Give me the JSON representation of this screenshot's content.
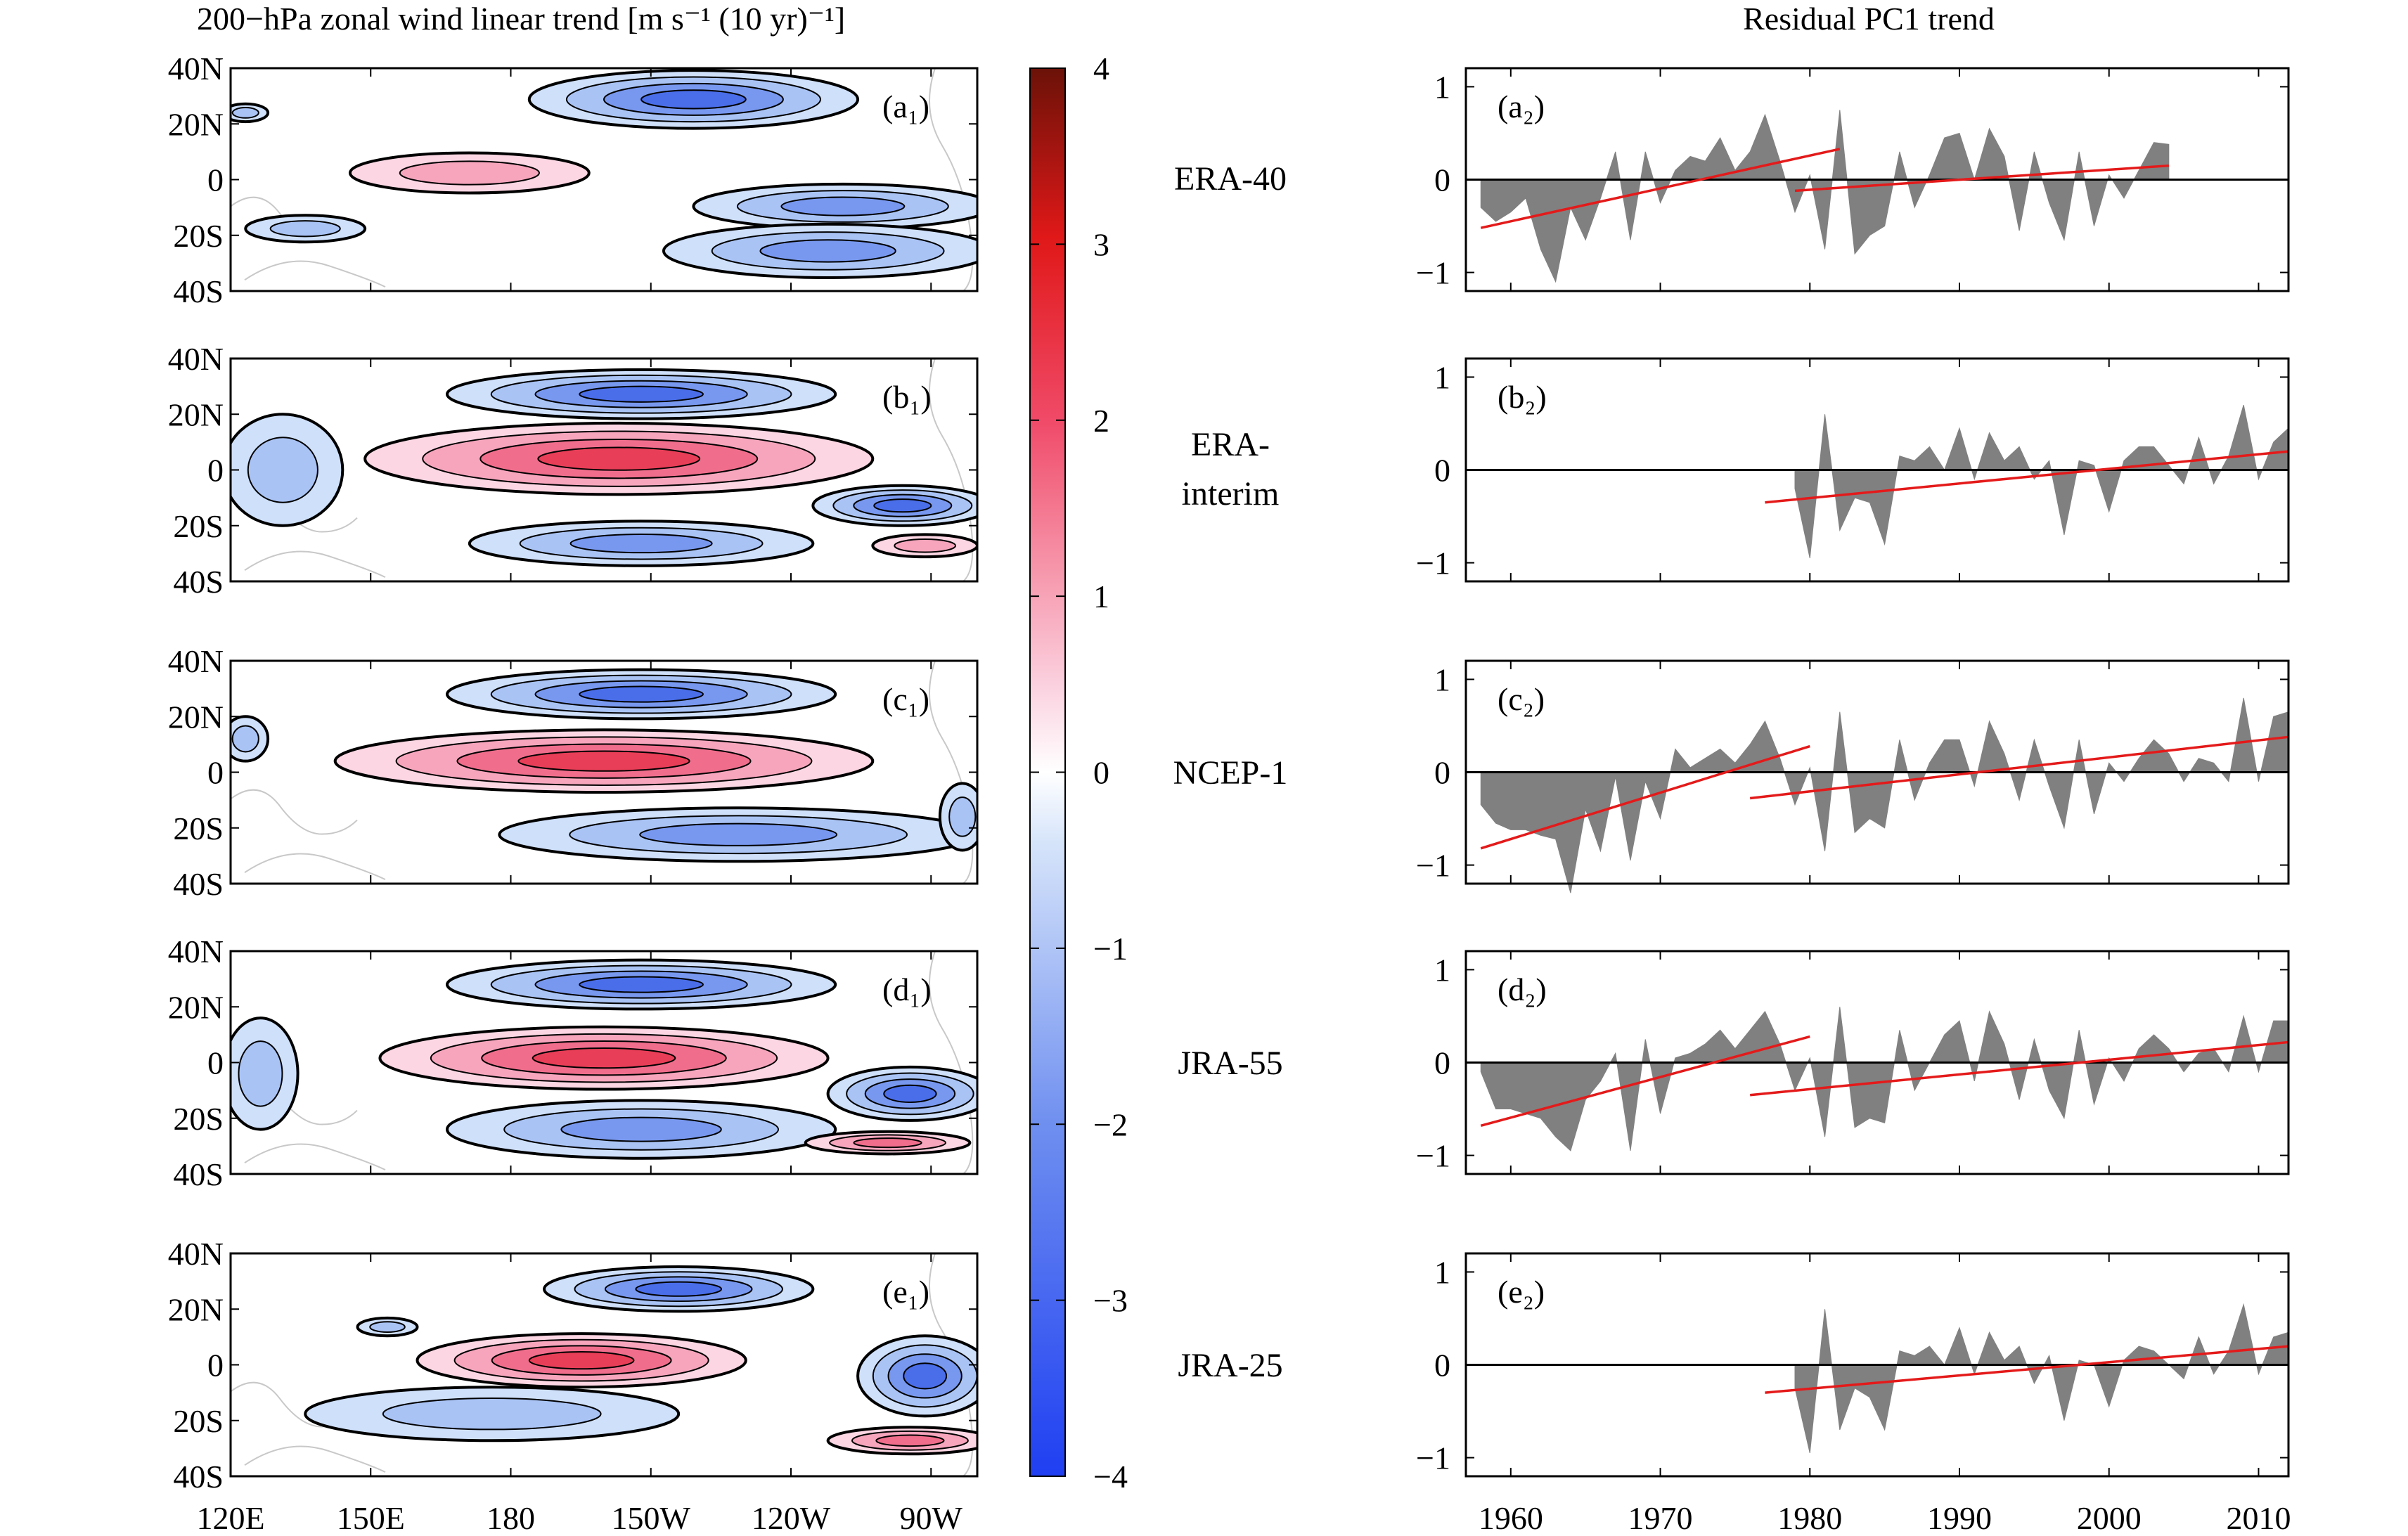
{
  "left_title": "200−hPa zonal wind linear trend [m s⁻¹ (10 yr)⁻¹]",
  "right_title": "Residual PC1 trend",
  "map_panels": [
    {
      "label": "(a₁)",
      "dataset": "ERA-40"
    },
    {
      "label": "(b₁)",
      "dataset": "ERA-interim"
    },
    {
      "label": "(c₁)",
      "dataset": "NCEP-1"
    },
    {
      "label": "(d₁)",
      "dataset": "JRA-55"
    },
    {
      "label": "(e₁)",
      "dataset": "JRA-25"
    }
  ],
  "lat_ticks": [
    "40N",
    "20N",
    "0",
    "20S",
    "40S"
  ],
  "lon_ticks": [
    "120E",
    "150E",
    "180",
    "150W",
    "120W",
    "90W"
  ],
  "colorbar": {
    "min": -4,
    "max": 4,
    "ticks": [
      "4",
      "3",
      "2",
      "1",
      "0",
      "−1",
      "−2",
      "−3",
      "−4"
    ]
  },
  "datasets": [
    "ERA-40",
    "ERA-",
    "interim",
    "NCEP-1",
    "JRA-55",
    "JRA-25"
  ],
  "chart_data": {
    "type": "area",
    "title": "Residual PC1 trend",
    "xlabel": "",
    "ylabel": "",
    "xlim": [
      1957,
      2012
    ],
    "ylim": [
      -1.2,
      1.2
    ],
    "x_ticks": [
      "1960",
      "1970",
      "1980",
      "1990",
      "2000",
      "2010"
    ],
    "y_ticks": [
      "1",
      "0",
      "−1"
    ],
    "series": [
      {
        "label": "(a₂)",
        "name": "ERA-40",
        "start": 1958,
        "values": [
          -0.3,
          -0.45,
          -0.35,
          -0.2,
          -0.75,
          -1.1,
          -0.3,
          -0.65,
          -0.2,
          0.3,
          -0.65,
          0.3,
          -0.25,
          0.1,
          0.25,
          0.2,
          0.45,
          0.1,
          0.3,
          0.7,
          0.2,
          -0.35,
          0.05,
          -0.75,
          0.75,
          -0.8,
          -0.6,
          -0.5,
          0.3,
          -0.3,
          0.05,
          0.45,
          0.5,
          0.0,
          0.55,
          0.25,
          -0.55,
          0.3,
          -0.25,
          -0.65,
          0.3,
          -0.5,
          0.05,
          -0.2,
          0.1,
          0.4,
          0.38
        ],
        "trends": [
          {
            "x": [
              1958,
              1982
            ],
            "y": [
              -0.52,
              0.33
            ]
          },
          {
            "x": [
              1979,
              2004
            ],
            "y": [
              -0.12,
              0.15
            ]
          }
        ]
      },
      {
        "label": "(b₂)",
        "name": "ERA-interim",
        "start": 1979,
        "values": [
          -0.2,
          -0.95,
          0.6,
          -0.65,
          -0.3,
          -0.35,
          -0.8,
          0.15,
          0.1,
          0.25,
          0.0,
          0.45,
          -0.1,
          0.4,
          0.1,
          0.25,
          -0.1,
          0.1,
          -0.7,
          0.1,
          0.05,
          -0.45,
          0.1,
          0.25,
          0.25,
          0.05,
          -0.15,
          0.35,
          -0.15,
          0.15,
          0.7,
          -0.1,
          0.3,
          0.45
        ],
        "trends": [
          {
            "x": [
              1977,
              2012
            ],
            "y": [
              -0.35,
              0.2
            ]
          }
        ]
      },
      {
        "label": "(c₂)",
        "name": "NCEP-1",
        "start": 1958,
        "values": [
          -0.35,
          -0.55,
          -0.62,
          -0.62,
          -0.68,
          -0.72,
          -1.3,
          -0.4,
          -0.85,
          -0.05,
          -0.95,
          -0.1,
          -0.5,
          0.25,
          0.05,
          0.15,
          0.25,
          0.1,
          0.3,
          0.55,
          0.15,
          -0.35,
          0.05,
          -0.85,
          0.65,
          -0.65,
          -0.5,
          -0.6,
          0.35,
          -0.3,
          0.1,
          0.35,
          0.35,
          -0.15,
          0.55,
          0.2,
          -0.3,
          0.35,
          -0.15,
          -0.6,
          0.35,
          -0.45,
          0.1,
          -0.1,
          0.15,
          0.35,
          0.2,
          -0.1,
          0.15,
          0.1,
          -0.1,
          0.8,
          -0.1,
          0.6,
          0.65
        ],
        "trends": [
          {
            "x": [
              1958,
              1980
            ],
            "y": [
              -0.82,
              0.28
            ]
          },
          {
            "x": [
              1976,
              2012
            ],
            "y": [
              -0.28,
              0.38
            ]
          }
        ]
      },
      {
        "label": "(d₂)",
        "name": "JRA-55",
        "start": 1958,
        "values": [
          -0.1,
          -0.5,
          -0.5,
          -0.55,
          -0.6,
          -0.8,
          -0.95,
          -0.4,
          -0.2,
          0.1,
          -0.95,
          0.25,
          -0.55,
          0.05,
          0.1,
          0.2,
          0.35,
          0.15,
          0.35,
          0.55,
          0.2,
          -0.3,
          0.05,
          -0.8,
          0.6,
          -0.7,
          -0.6,
          -0.65,
          0.35,
          -0.3,
          0.0,
          0.3,
          0.45,
          -0.2,
          0.55,
          0.2,
          -0.4,
          0.25,
          -0.3,
          -0.6,
          0.35,
          -0.45,
          0.05,
          -0.2,
          0.15,
          0.3,
          0.15,
          -0.1,
          0.1,
          0.15,
          -0.1,
          0.5,
          -0.1,
          0.45,
          0.45
        ],
        "trends": [
          {
            "x": [
              1958,
              1980
            ],
            "y": [
              -0.68,
              0.28
            ]
          },
          {
            "x": [
              1976,
              2012
            ],
            "y": [
              -0.35,
              0.22
            ]
          }
        ]
      },
      {
        "label": "(e₂)",
        "name": "JRA-25",
        "start": 1979,
        "values": [
          -0.25,
          -0.95,
          0.6,
          -0.7,
          -0.25,
          -0.35,
          -0.7,
          0.15,
          0.1,
          0.2,
          0.0,
          0.4,
          -0.1,
          0.35,
          0.05,
          0.2,
          -0.2,
          0.1,
          -0.6,
          0.05,
          0.0,
          -0.45,
          0.05,
          0.2,
          0.15,
          0.0,
          -0.15,
          0.3,
          -0.1,
          0.15,
          0.65,
          -0.1,
          0.3,
          0.35
        ],
        "trends": [
          {
            "x": [
              1977,
              2012
            ],
            "y": [
              -0.3,
              0.2
            ]
          }
        ]
      }
    ]
  }
}
